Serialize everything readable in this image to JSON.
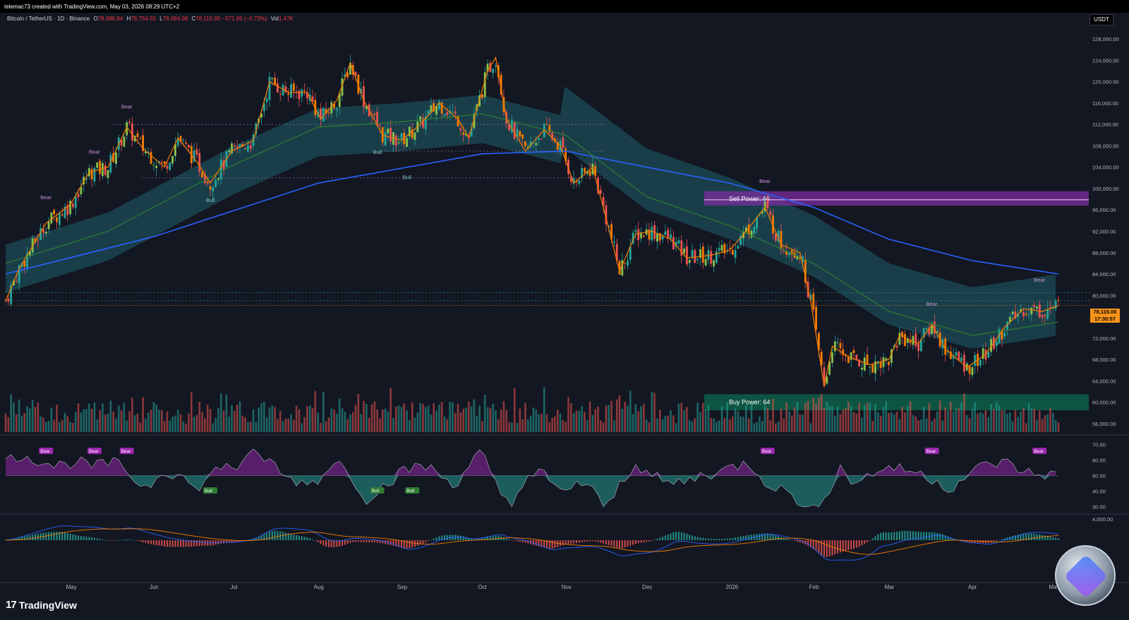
{
  "header": {
    "credit": "telemac73 created with TradingView.com, May 03, 2026 08:29 UTC+2",
    "symbol": "Bitcoin / TetherUS · 1D · Binance",
    "open_label": "O",
    "open": "78,686.84",
    "high_label": "H",
    "high": "78,754.55",
    "low_label": "L",
    "low": "78,084.08",
    "close_label": "C",
    "close": "78,115.00",
    "change": "−571.85 (−0.73%)",
    "vol_label": "Vol",
    "vol": "1.47K",
    "currency": "USDT"
  },
  "footer": {
    "brand": "TradingView",
    "logo_text": "17"
  },
  "colors": {
    "background": "#131722",
    "bull": "#26a69a",
    "bear": "#ef5350",
    "ema_fast": "#f57c00",
    "ema_mid": "#2e7d32",
    "ema_slow": "#2962ff",
    "cloud": "#1f5f6b",
    "bear_label": "#9c27b0",
    "bull_label": "#2e7d32",
    "price_tag": "#f7931a"
  },
  "price_tag": {
    "price": "78,115.00",
    "countdown": "17:30:57"
  },
  "zones": {
    "sell": {
      "label": "Sell Power: 66",
      "top": 99500,
      "bottom": 96800
    },
    "buy": {
      "label": "Buy Power: 64",
      "top": 61500,
      "bottom": 58500
    }
  },
  "annotations": {
    "bear": "Bear",
    "bull": "Bull",
    "dotted_levels": [
      112000,
      107000,
      102000,
      80500,
      79000
    ]
  },
  "chart_data": [
    {
      "type": "candlestick",
      "title": "",
      "ylabel": "USDT",
      "ylim": [
        54000,
        130000
      ],
      "yticks": [
        56000,
        60000,
        64000,
        68000,
        72000,
        76000,
        80000,
        84000,
        88000,
        92000,
        96000,
        100000,
        104000,
        108000,
        112000,
        116000,
        120000,
        124000,
        128000
      ],
      "ytick_labels": [
        "56,000.00",
        "60,000.00",
        "64,000.00",
        "68,000.00",
        "72,000.00",
        "76,000.00",
        "80,000.00",
        "84,000.00",
        "88,000.00",
        "92,000.00",
        "96,000.00",
        "100,000.00",
        "104,000.00",
        "108,000.00",
        "112,000.00",
        "116,000.00",
        "120,000.00",
        "124,000.00",
        "128,000.00"
      ],
      "xticks": [
        "May",
        "Jun",
        "Jul",
        "Aug",
        "Sep",
        "Oct",
        "Nov",
        "Dec",
        "2026",
        "Feb",
        "Mar",
        "Apr",
        "Ma"
      ],
      "close_path": [
        {
          "x": "2025-04-07",
          "y": 79000
        },
        {
          "x": "2025-04-12",
          "y": 85000
        },
        {
          "x": "2025-04-22",
          "y": 93500
        },
        {
          "x": "2025-05-01",
          "y": 97000
        },
        {
          "x": "2025-05-08",
          "y": 103000
        },
        {
          "x": "2025-05-15",
          "y": 104000
        },
        {
          "x": "2025-05-22",
          "y": 111500
        },
        {
          "x": "2025-05-28",
          "y": 107500
        },
        {
          "x": "2025-06-05",
          "y": 104000
        },
        {
          "x": "2025-06-10",
          "y": 109500
        },
        {
          "x": "2025-06-17",
          "y": 105000
        },
        {
          "x": "2025-06-22",
          "y": 101000
        },
        {
          "x": "2025-06-30",
          "y": 107000
        },
        {
          "x": "2025-07-08",
          "y": 109000
        },
        {
          "x": "2025-07-14",
          "y": 120000
        },
        {
          "x": "2025-07-21",
          "y": 118000
        },
        {
          "x": "2025-07-28",
          "y": 118000
        },
        {
          "x": "2025-08-02",
          "y": 113000
        },
        {
          "x": "2025-08-08",
          "y": 116500
        },
        {
          "x": "2025-08-13",
          "y": 123500
        },
        {
          "x": "2025-08-18",
          "y": 116500
        },
        {
          "x": "2025-08-25",
          "y": 110000
        },
        {
          "x": "2025-09-01",
          "y": 109000
        },
        {
          "x": "2025-09-08",
          "y": 112000
        },
        {
          "x": "2025-09-15",
          "y": 116000
        },
        {
          "x": "2025-09-22",
          "y": 113000
        },
        {
          "x": "2025-09-26",
          "y": 109500
        },
        {
          "x": "2025-10-03",
          "y": 122000
        },
        {
          "x": "2025-10-06",
          "y": 124500
        },
        {
          "x": "2025-10-10",
          "y": 113000
        },
        {
          "x": "2025-10-17",
          "y": 107000
        },
        {
          "x": "2025-10-24",
          "y": 111000
        },
        {
          "x": "2025-10-30",
          "y": 108000
        },
        {
          "x": "2025-11-04",
          "y": 101000
        },
        {
          "x": "2025-11-11",
          "y": 104000
        },
        {
          "x": "2025-11-16",
          "y": 94500
        },
        {
          "x": "2025-11-21",
          "y": 84500
        },
        {
          "x": "2025-11-27",
          "y": 91500
        },
        {
          "x": "2025-12-03",
          "y": 92000
        },
        {
          "x": "2025-12-10",
          "y": 90500
        },
        {
          "x": "2025-12-16",
          "y": 87000
        },
        {
          "x": "2025-12-25",
          "y": 87500
        },
        {
          "x": "2026-01-01",
          "y": 88500
        },
        {
          "x": "2026-01-07",
          "y": 92000
        },
        {
          "x": "2026-01-14",
          "y": 96500
        },
        {
          "x": "2026-01-20",
          "y": 89500
        },
        {
          "x": "2026-01-27",
          "y": 88000
        },
        {
          "x": "2026-01-31",
          "y": 79000
        },
        {
          "x": "2026-02-05",
          "y": 63000
        },
        {
          "x": "2026-02-08",
          "y": 70500
        },
        {
          "x": "2026-02-14",
          "y": 68500
        },
        {
          "x": "2026-02-22",
          "y": 67000
        },
        {
          "x": "2026-03-01",
          "y": 68000
        },
        {
          "x": "2026-03-05",
          "y": 72500
        },
        {
          "x": "2026-03-12",
          "y": 71000
        },
        {
          "x": "2026-03-17",
          "y": 74500
        },
        {
          "x": "2026-03-22",
          "y": 70000
        },
        {
          "x": "2026-03-30",
          "y": 66500
        },
        {
          "x": "2026-04-06",
          "y": 69000
        },
        {
          "x": "2026-04-13",
          "y": 74000
        },
        {
          "x": "2026-04-20",
          "y": 77500
        },
        {
          "x": "2026-04-27",
          "y": 77000
        },
        {
          "x": "2026-05-03",
          "y": 78115
        }
      ],
      "ema_slow": [
        {
          "x": "2025-04-07",
          "y": 84000
        },
        {
          "x": "2025-06-01",
          "y": 91000
        },
        {
          "x": "2025-08-01",
          "y": 101000
        },
        {
          "x": "2025-10-01",
          "y": 106500
        },
        {
          "x": "2025-11-01",
          "y": 107000
        },
        {
          "x": "2025-12-01",
          "y": 104000
        },
        {
          "x": "2026-01-01",
          "y": 101000
        },
        {
          "x": "2026-02-01",
          "y": 96500
        },
        {
          "x": "2026-03-01",
          "y": 90500
        },
        {
          "x": "2026-04-01",
          "y": 86500
        },
        {
          "x": "2026-05-03",
          "y": 84000
        }
      ],
      "ema_mid": [
        {
          "x": "2025-04-07",
          "y": 86000
        },
        {
          "x": "2025-05-15",
          "y": 92000
        },
        {
          "x": "2025-07-01",
          "y": 104500
        },
        {
          "x": "2025-08-01",
          "y": 111500
        },
        {
          "x": "2025-09-01",
          "y": 112500
        },
        {
          "x": "2025-10-01",
          "y": 114000
        },
        {
          "x": "2025-11-01",
          "y": 110000
        },
        {
          "x": "2025-12-01",
          "y": 98500
        },
        {
          "x": "2026-01-01",
          "y": 93000
        },
        {
          "x": "2026-02-01",
          "y": 86000
        },
        {
          "x": "2026-03-01",
          "y": 77000
        },
        {
          "x": "2026-04-01",
          "y": 72500
        },
        {
          "x": "2026-05-03",
          "y": 75000
        }
      ]
    },
    {
      "type": "line",
      "title": "",
      "ylim": [
        28,
        72
      ],
      "yticks": [
        30,
        40,
        50,
        60,
        70
      ],
      "ytick_labels": [
        "30.00",
        "40.00",
        "50.00",
        "60.00",
        "70.00"
      ],
      "midline": 50,
      "labels": [
        {
          "text": "Bear",
          "x": "2025-04-22"
        },
        {
          "text": "Bear",
          "x": "2025-05-10"
        },
        {
          "text": "Bear",
          "x": "2025-05-22"
        },
        {
          "text": "Bull",
          "x": "2025-06-22"
        },
        {
          "text": "Bull",
          "x": "2025-08-23"
        },
        {
          "text": "Bull",
          "x": "2025-09-05"
        },
        {
          "text": "Bear",
          "x": "2026-01-15"
        },
        {
          "text": "Bear",
          "x": "2026-03-17"
        },
        {
          "text": "Bear",
          "x": "2026-04-26"
        }
      ]
    },
    {
      "type": "histogram",
      "title": "",
      "yticks": [
        4000
      ],
      "ytick_labels": [
        "4,000.00"
      ]
    }
  ]
}
